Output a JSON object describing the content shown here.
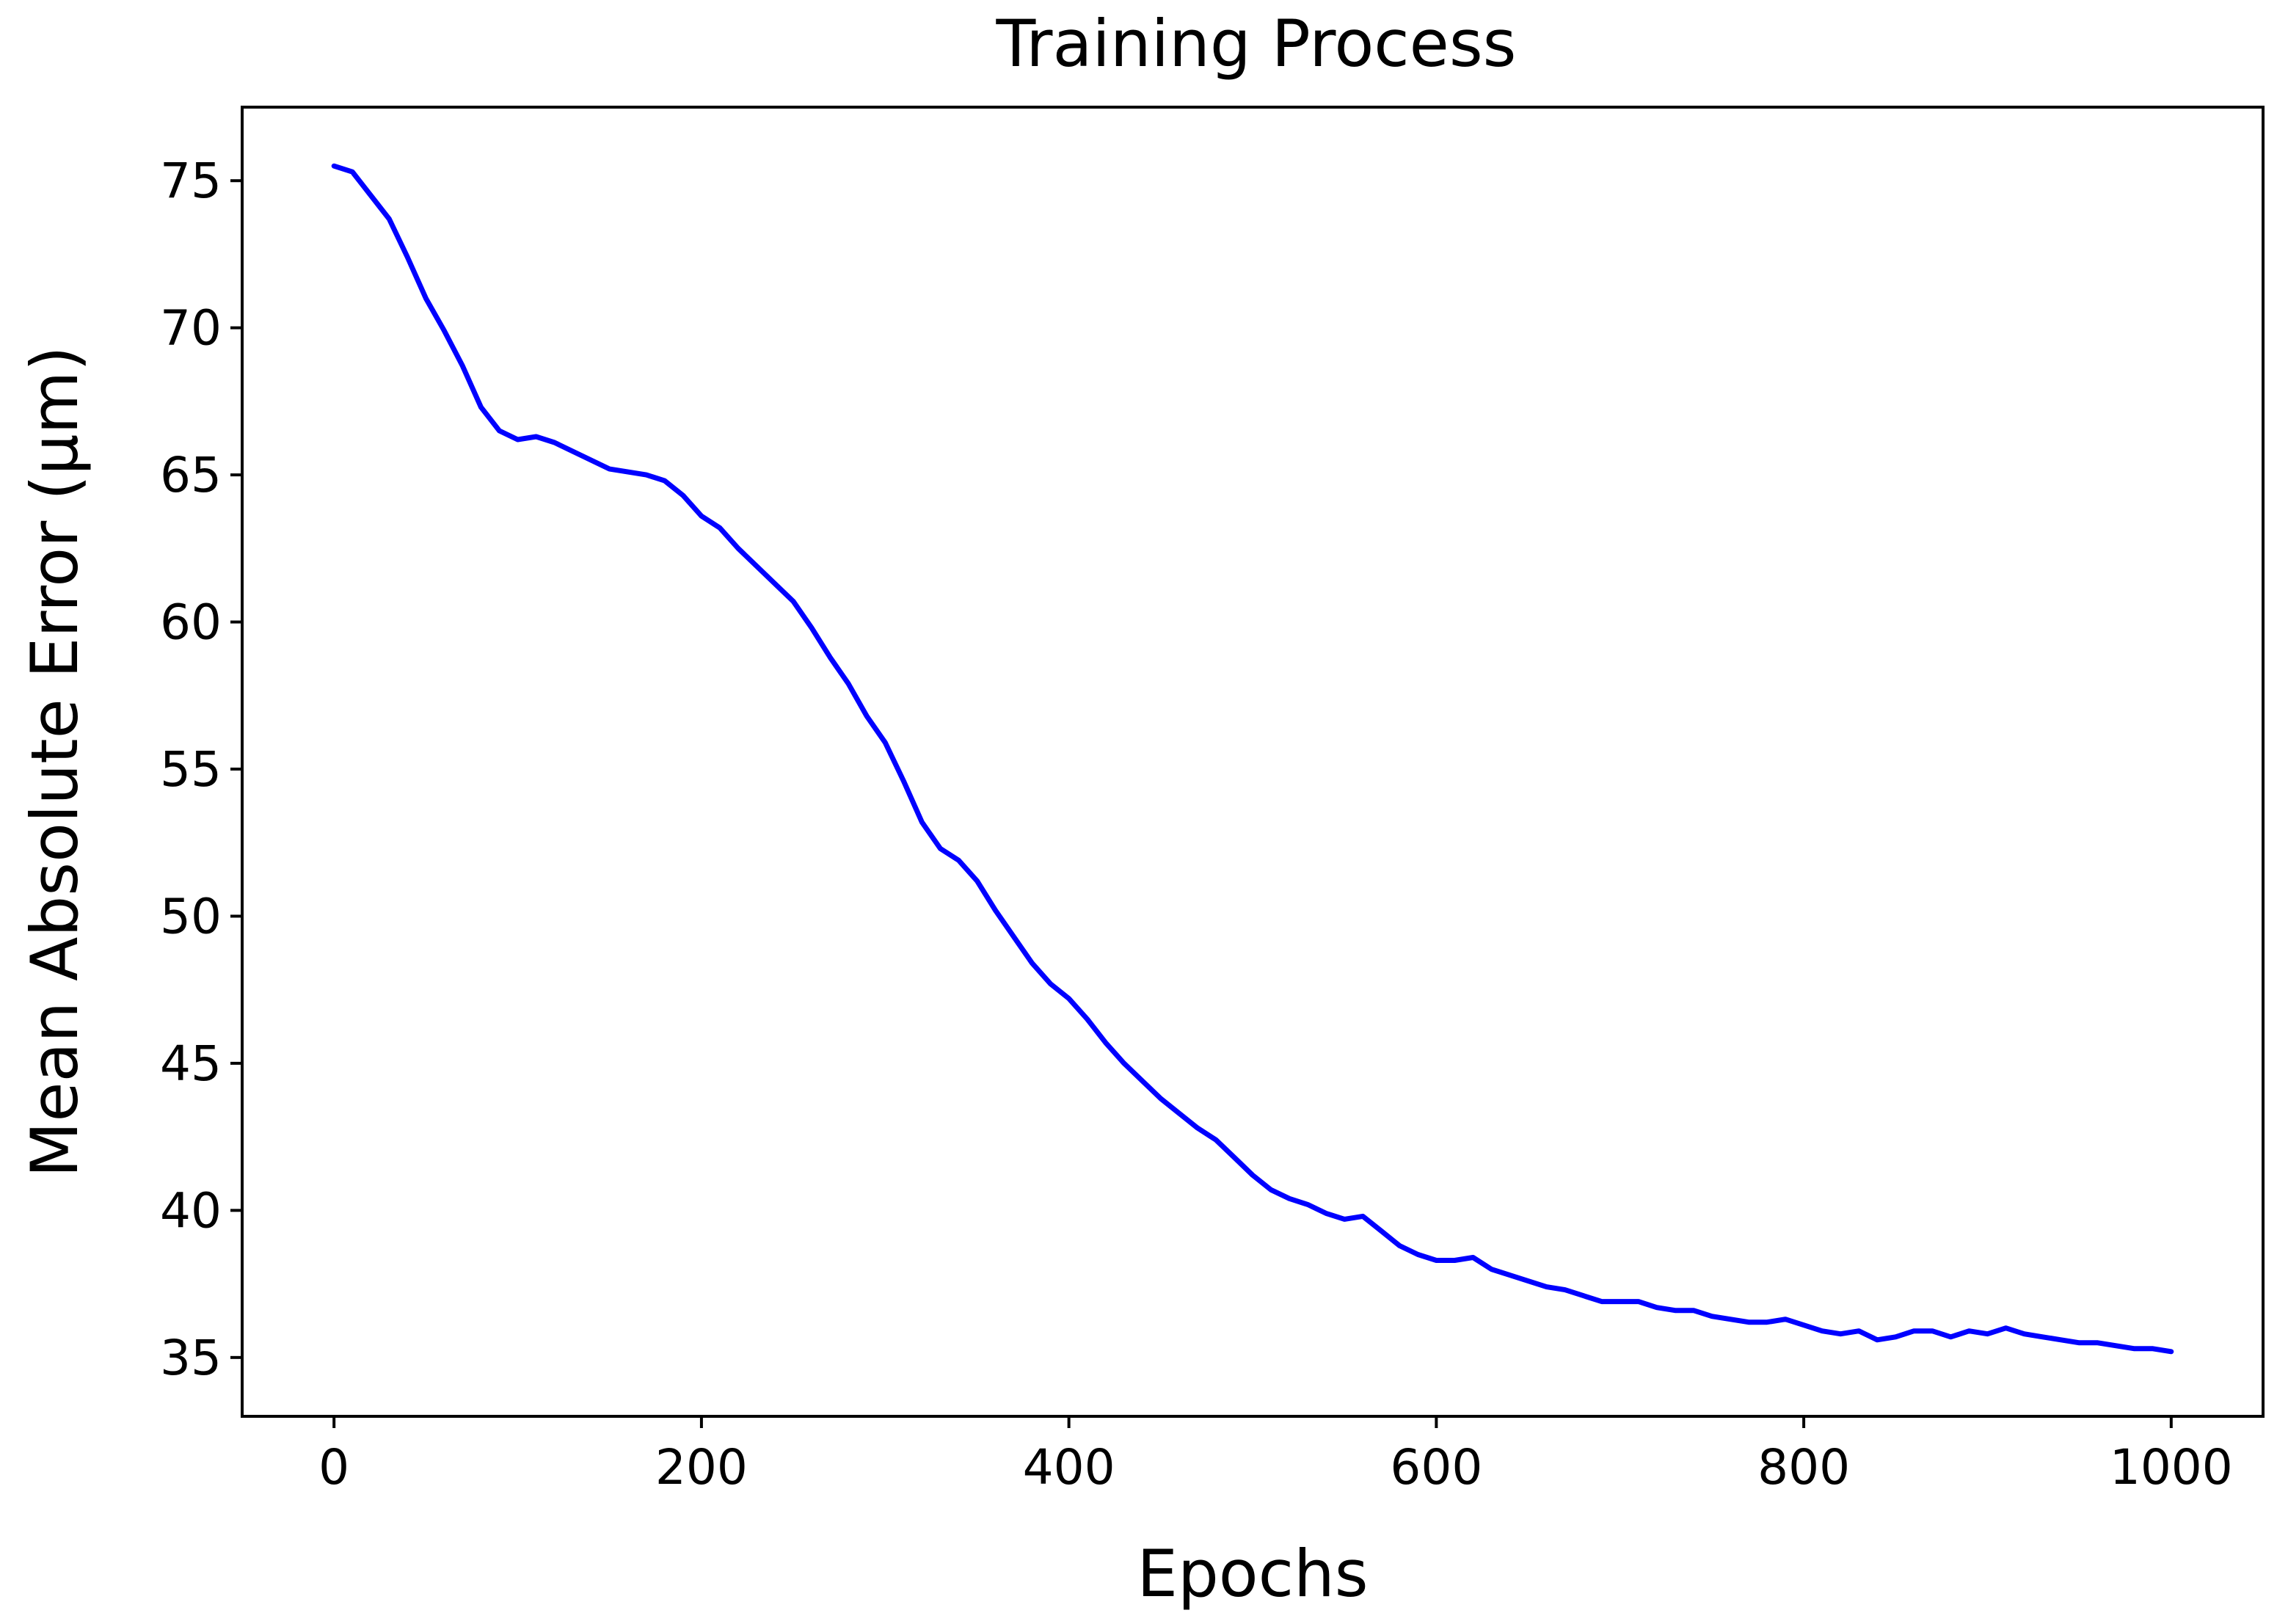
{
  "chart_data": {
    "type": "line",
    "title": "Training Process",
    "xlabel": "Epochs",
    "ylabel": "Mean Absolute Error (μm)",
    "xlim": [
      -50,
      1050
    ],
    "ylim": [
      33,
      77.5
    ],
    "xticks": [
      0,
      200,
      400,
      600,
      800,
      1000
    ],
    "yticks": [
      35,
      40,
      45,
      50,
      55,
      60,
      65,
      70,
      75
    ],
    "xtick_labels": [
      "0",
      "200",
      "400",
      "600",
      "800",
      "1000"
    ],
    "ytick_labels": [
      "35",
      "40",
      "45",
      "50",
      "55",
      "60",
      "65",
      "70",
      "75"
    ],
    "grid": false,
    "legend": "none",
    "line_color": "#0000ff",
    "series": [
      {
        "x": [
          0,
          10,
          20,
          30,
          40,
          50,
          60,
          70,
          80,
          90,
          100,
          110,
          120,
          130,
          140,
          150,
          160,
          170,
          180,
          190,
          200,
          210,
          220,
          230,
          240,
          250,
          260,
          270,
          280,
          290,
          300,
          310,
          320,
          330,
          340,
          350,
          360,
          370,
          380,
          390,
          400,
          410,
          420,
          430,
          440,
          450,
          460,
          470,
          480,
          490,
          500,
          510,
          520,
          530,
          540,
          550,
          560,
          570,
          580,
          590,
          600,
          610,
          620,
          630,
          640,
          650,
          660,
          670,
          680,
          690,
          700,
          710,
          720,
          730,
          740,
          750,
          760,
          770,
          780,
          790,
          800,
          810,
          820,
          830,
          840,
          850,
          860,
          870,
          880,
          890,
          900,
          910,
          920,
          930,
          940,
          950,
          960,
          970,
          980,
          990,
          1000
        ],
        "values": [
          75.5,
          75.3,
          74.5,
          73.7,
          72.4,
          71.0,
          69.9,
          68.7,
          67.3,
          66.5,
          66.2,
          66.3,
          66.1,
          65.8,
          65.5,
          65.2,
          65.1,
          65.0,
          64.8,
          64.3,
          63.6,
          63.2,
          62.5,
          61.9,
          61.3,
          60.7,
          59.8,
          58.8,
          57.9,
          56.8,
          55.9,
          54.6,
          53.2,
          52.3,
          51.9,
          51.2,
          50.2,
          49.3,
          48.4,
          47.7,
          47.2,
          46.5,
          45.7,
          45.0,
          44.4,
          43.8,
          43.3,
          42.8,
          42.4,
          41.8,
          41.2,
          40.7,
          40.4,
          40.2,
          39.9,
          39.7,
          39.8,
          39.3,
          38.8,
          38.5,
          38.3,
          38.3,
          38.4,
          38.0,
          37.8,
          37.6,
          37.4,
          37.3,
          37.1,
          36.9,
          36.9,
          36.9,
          36.7,
          36.6,
          36.6,
          36.4,
          36.3,
          36.2,
          36.2,
          36.3,
          36.1,
          35.9,
          35.8,
          35.9,
          35.6,
          35.7,
          35.9,
          35.9,
          35.7,
          35.9,
          35.8,
          36.0,
          35.8,
          35.7,
          35.6,
          35.5,
          35.5,
          35.4,
          35.3,
          35.3,
          35.2
        ]
      }
    ]
  }
}
